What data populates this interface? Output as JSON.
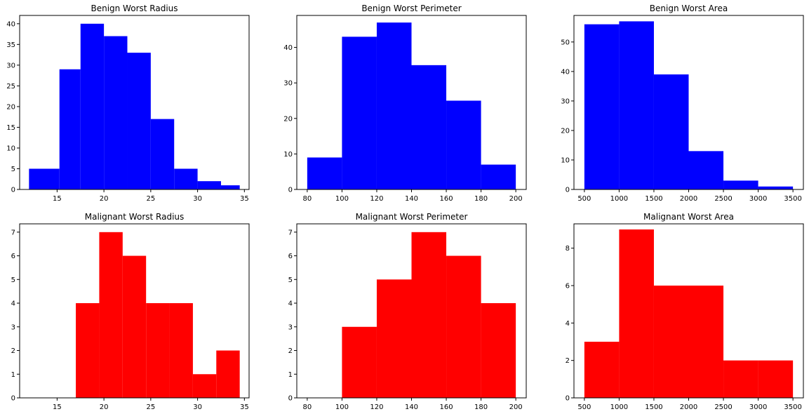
{
  "chart_data": [
    {
      "type": "bar",
      "title": "Benign Worst Radius",
      "color": "#0000ff",
      "bin_edges": [
        12.0,
        15.25,
        17.5,
        20.0,
        22.5,
        25.0,
        27.5,
        30.0,
        32.5,
        34.5
      ],
      "values": [
        5,
        29,
        40,
        37,
        33,
        17,
        5,
        2,
        1
      ],
      "xlim": [
        11.0,
        35.5
      ],
      "ylim": [
        0,
        42
      ],
      "xticks": [
        15,
        20,
        25,
        30,
        35
      ],
      "yticks": [
        0,
        5,
        10,
        15,
        20,
        25,
        30,
        35,
        40
      ]
    },
    {
      "type": "bar",
      "title": "Benign Worst Perimeter",
      "color": "#0000ff",
      "bin_edges": [
        80,
        100,
        120,
        140,
        160,
        180,
        200
      ],
      "values": [
        9,
        43,
        47,
        35,
        25,
        7
      ],
      "xlim": [
        74,
        206
      ],
      "ylim": [
        0,
        49
      ],
      "xticks": [
        80,
        100,
        120,
        140,
        160,
        180,
        200
      ],
      "yticks": [
        0,
        10,
        20,
        30,
        40
      ]
    },
    {
      "type": "bar",
      "title": "Benign Worst Area",
      "color": "#0000ff",
      "bin_edges": [
        500,
        1000,
        1500,
        2000,
        2500,
        3000,
        3500
      ],
      "values": [
        56,
        57,
        39,
        13,
        3,
        1
      ],
      "xlim": [
        350,
        3650
      ],
      "ylim": [
        0,
        59
      ],
      "xticks": [
        500,
        1000,
        1500,
        2000,
        2500,
        3000,
        3500
      ],
      "yticks": [
        0,
        10,
        20,
        30,
        40,
        50
      ]
    },
    {
      "type": "bar",
      "title": "Malignant Worst Radius",
      "color": "#ff0000",
      "bin_edges": [
        12.0,
        14.5,
        17.0,
        19.5,
        22.0,
        24.5,
        27.0,
        29.5,
        32.0,
        34.5
      ],
      "values": [
        0,
        0,
        4,
        7,
        6,
        4,
        4,
        1,
        2
      ],
      "xlim": [
        11.0,
        35.5
      ],
      "ylim": [
        0,
        7.35
      ],
      "xticks": [
        15,
        20,
        25,
        30,
        35
      ],
      "yticks": [
        0,
        1,
        2,
        3,
        4,
        5,
        6,
        7
      ]
    },
    {
      "type": "bar",
      "title": "Malignant Worst Perimeter",
      "color": "#ff0000",
      "bin_edges": [
        80,
        100,
        120,
        140,
        160,
        180,
        200
      ],
      "values": [
        0,
        3,
        5,
        7,
        6,
        4
      ],
      "xlim": [
        74,
        206
      ],
      "ylim": [
        0,
        7.35
      ],
      "xticks": [
        80,
        100,
        120,
        140,
        160,
        180,
        200
      ],
      "yticks": [
        0,
        1,
        2,
        3,
        4,
        5,
        6,
        7
      ]
    },
    {
      "type": "bar",
      "title": "Malignant Worst Area",
      "color": "#ff0000",
      "bin_edges": [
        500,
        1000,
        1500,
        2000,
        2500,
        3000,
        3500
      ],
      "values": [
        3,
        9,
        6,
        6,
        2,
        2
      ],
      "xlim": [
        350,
        3650
      ],
      "ylim": [
        0,
        9.3
      ],
      "xticks": [
        500,
        1000,
        1500,
        2000,
        2500,
        3000,
        3500
      ],
      "yticks": [
        0,
        2,
        4,
        6,
        8
      ]
    }
  ]
}
